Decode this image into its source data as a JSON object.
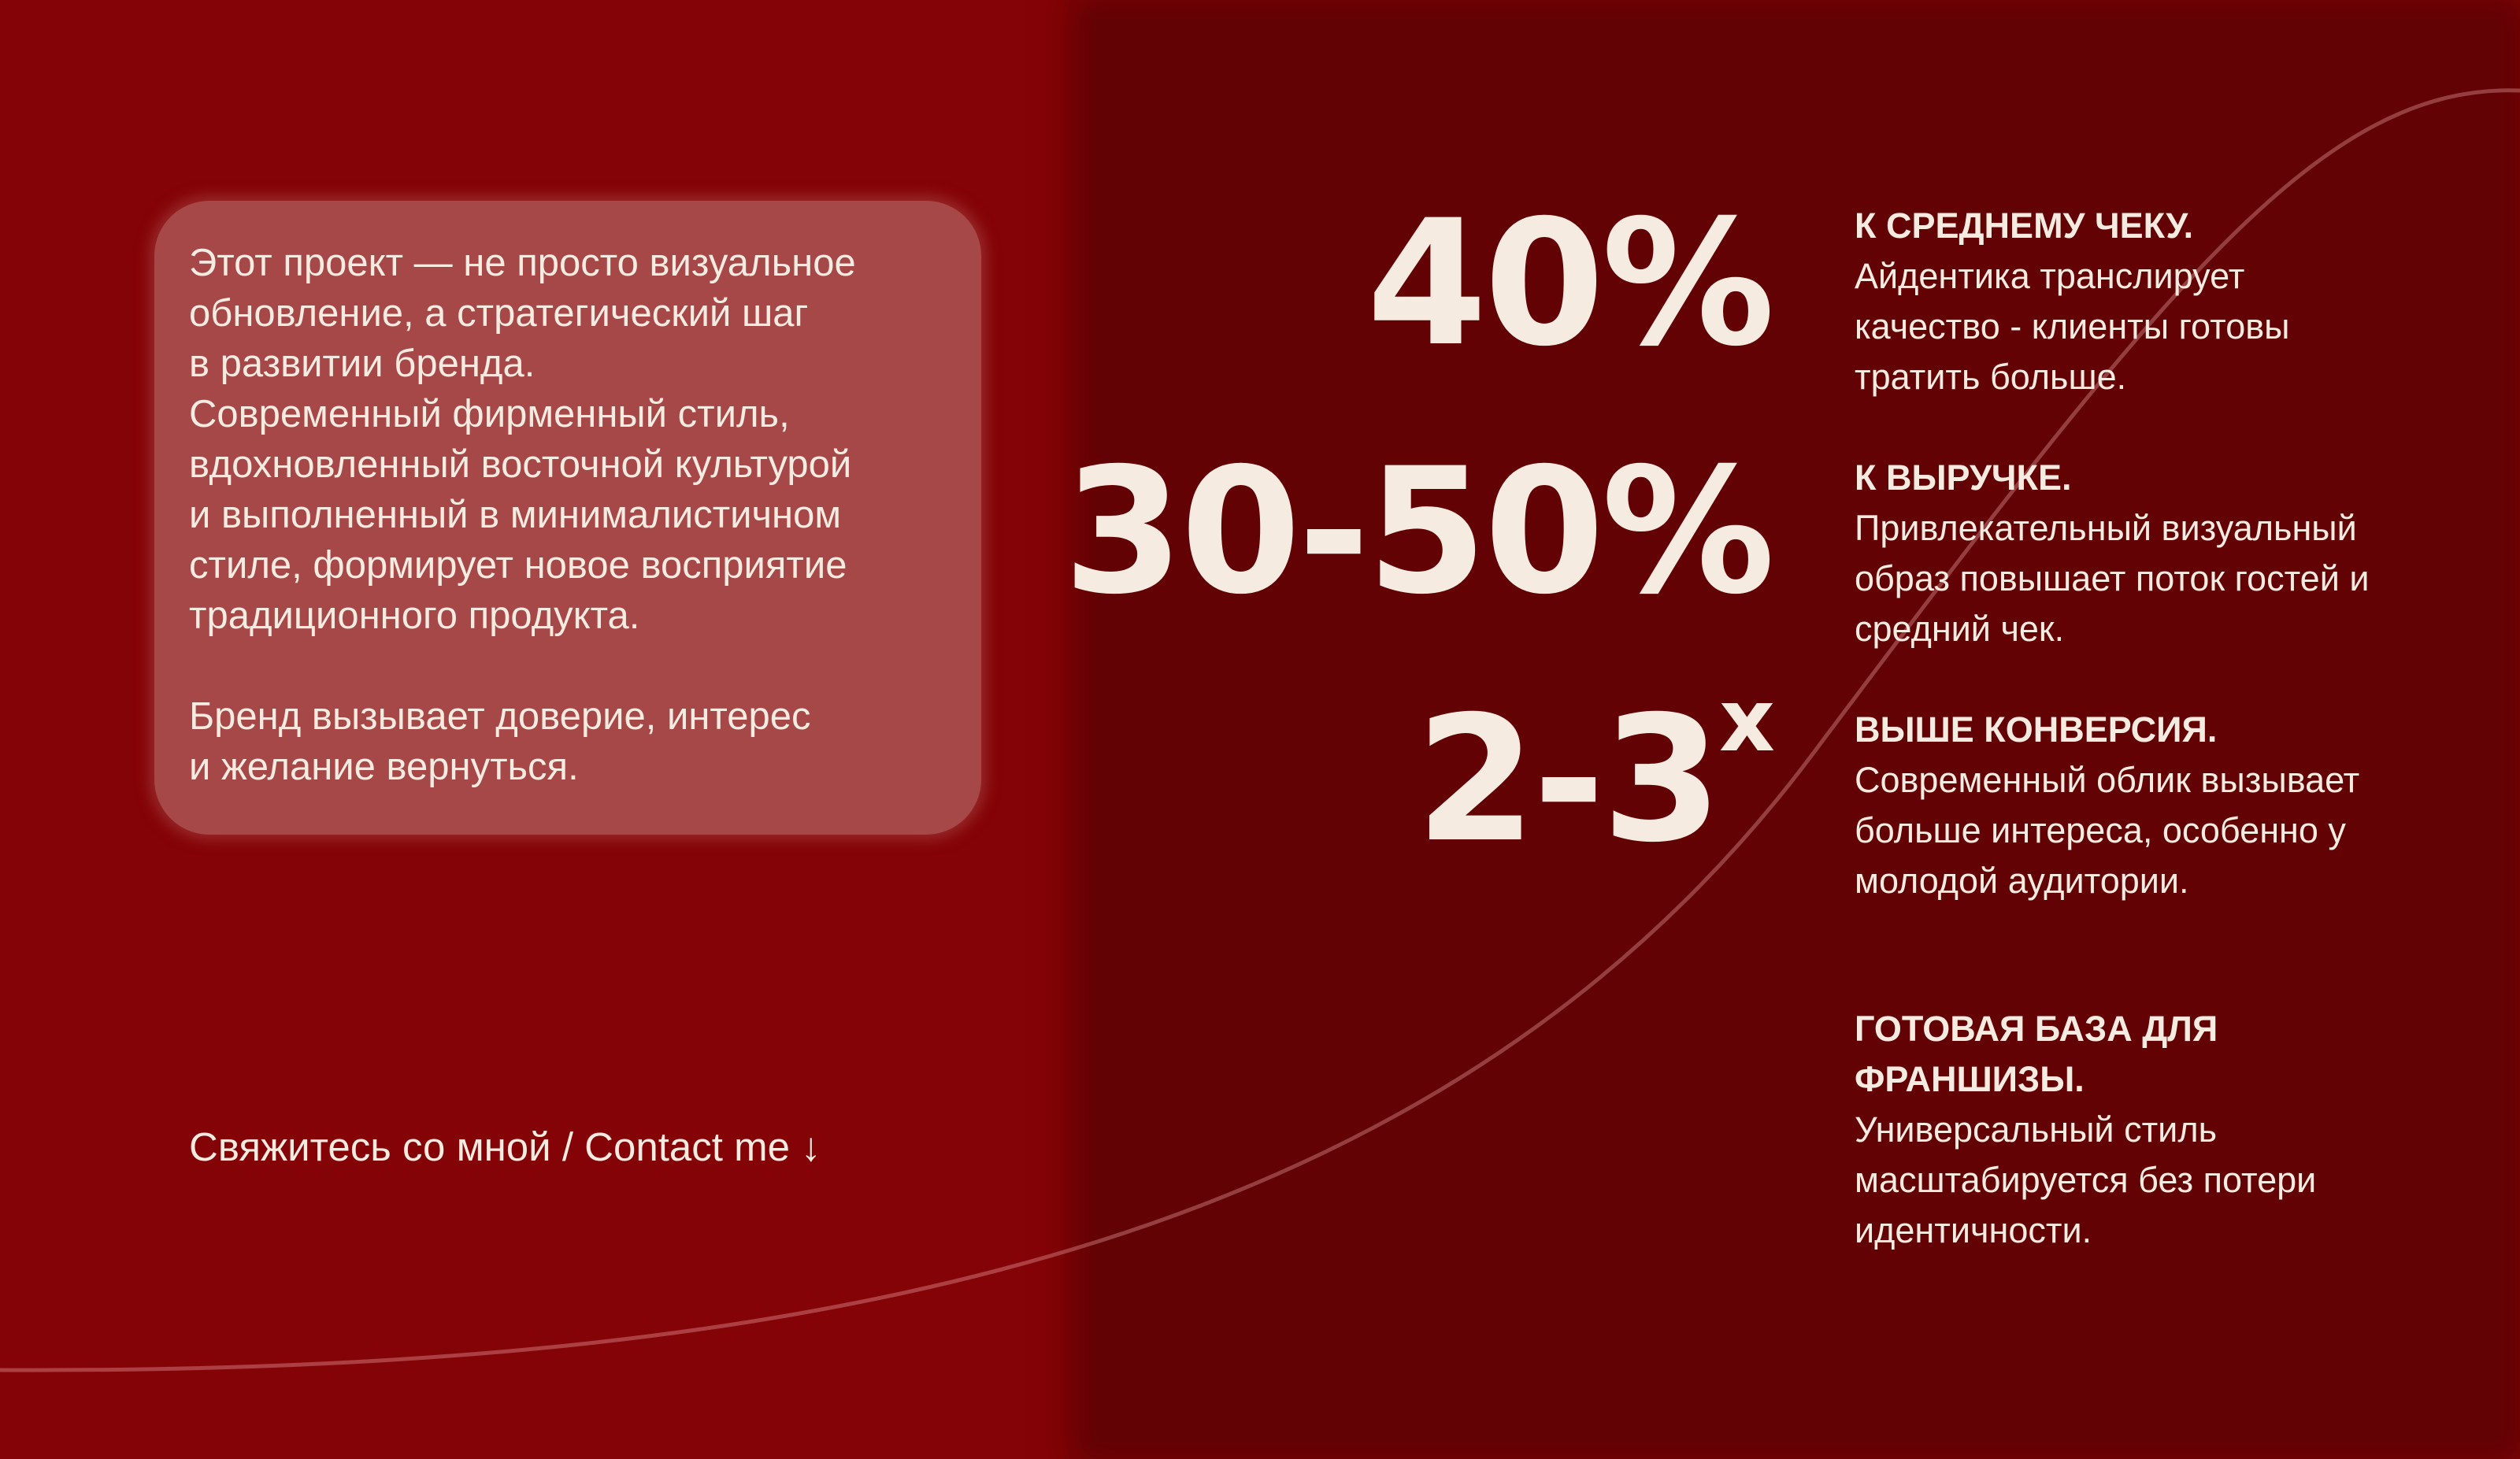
{
  "colors": {
    "background": "#840306",
    "panel": "#630204",
    "card": "#a64848",
    "text": "#f5ebe0"
  },
  "intro": {
    "text": "Этот проект — не просто визуальное\nобновление, а стратегический шаг\nв развитии бренда.\nСовременный фирменный стиль,\nвдохновленный восточной культурой\nи выполненный в минималистичном\nстиле, формирует новое восприятие\nтрадиционного продукта.\n\nБренд вызывает доверие, интерес\nи желание вернуться."
  },
  "contact": {
    "label": "Свяжитесь со мной / Contact me",
    "icon": "arrow-down-icon",
    "arrow": "↓"
  },
  "stats": [
    {
      "value": "40%",
      "heading": "К СРЕДНЕМУ ЧЕКУ.",
      "text": "Айдентика транслирует качество - клиенты готовы тратить больше."
    },
    {
      "value": "30-50%",
      "heading": "К ВЫРУЧКЕ.",
      "text": "Привлекательный визуальный образ повышает поток гостей и средний чек."
    },
    {
      "value": "2-3",
      "value_suffix": "x",
      "heading": "ВЫШЕ КОНВЕРСИЯ.",
      "text": "Современный облик вызывает больше интереса, особенно у молодой аудитории."
    },
    {
      "heading": "ГОТОВАЯ БАЗА ДЛЯ ФРАНШИЗЫ.",
      "text": "Универсальный стиль масштабируется без потери идентичности."
    }
  ]
}
